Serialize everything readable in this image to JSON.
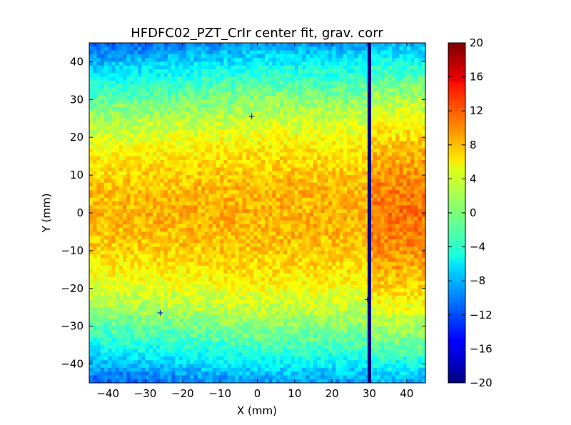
{
  "chart_data": {
    "type": "heatmap",
    "title": "HFDFC02_PZT_CrIr center fit, grav. corr",
    "xlabel": "X (mm)",
    "ylabel": "Y (mm)",
    "xlim": [
      -45,
      45
    ],
    "ylim": [
      -45,
      45
    ],
    "xticks": [
      -40,
      -30,
      -20,
      -10,
      0,
      10,
      20,
      30,
      40
    ],
    "xtick_labels": [
      "−40",
      "−30",
      "−20",
      "−10",
      "0",
      "10",
      "20",
      "30",
      "40"
    ],
    "yticks": [
      40,
      30,
      20,
      10,
      0,
      -10,
      -20,
      -30,
      -40
    ],
    "ytick_labels": [
      "40",
      "30",
      "20",
      "10",
      "0",
      "−10",
      "−20",
      "−30",
      "−40"
    ],
    "colormap": "jet",
    "clim": [
      -20,
      20
    ],
    "colorbar_ticks": [
      20,
      16,
      12,
      8,
      4,
      0,
      -4,
      -8,
      -12,
      -16,
      -20
    ],
    "colorbar_tick_labels": [
      "20",
      "16",
      "12",
      "8",
      "4",
      "0",
      "−4",
      "−8",
      "−12",
      "−16",
      "−20"
    ],
    "value_model": {
      "center_value": 8,
      "corner_value": -12,
      "description_x_of_dead_column": 30
    },
    "dead_column_x": 30,
    "dead_column_value": -20,
    "markers": [
      {
        "symbol": "+",
        "x": -1.5,
        "y": 25.5
      },
      {
        "symbol": "+",
        "x": -26,
        "y": -26.5
      },
      {
        "symbol": "+",
        "x": 29.5,
        "y": -23
      }
    ],
    "grid": false
  }
}
